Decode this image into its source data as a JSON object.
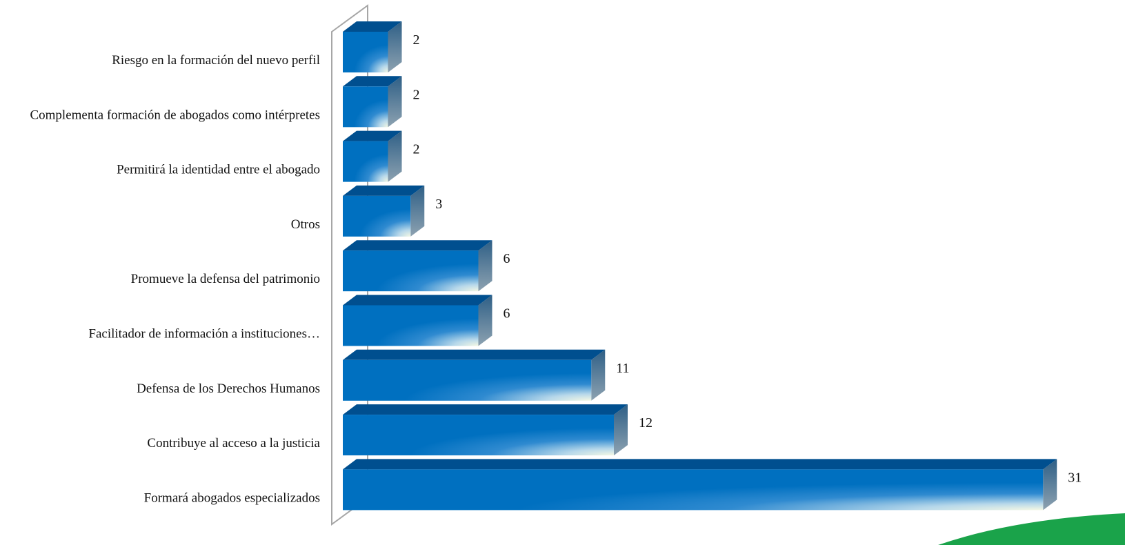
{
  "chart_data": {
    "type": "bar",
    "orientation": "horizontal",
    "style": "3d",
    "categories": [
      "Riesgo en la formación del nuevo perfil",
      "Complementa formación de abogados como intérpretes",
      "Permitirá la identidad entre el abogado",
      "Otros",
      "Promueve la defensa del patrimonio",
      "Facilitador de información a instituciones…",
      "Defensa de los Derechos Humanos",
      "Contribuye al acceso a la justicia",
      "Formará abogados especializados"
    ],
    "values": [
      2,
      2,
      2,
      3,
      6,
      6,
      11,
      12,
      31
    ],
    "data_labels": [
      "2",
      "2",
      "2",
      "3",
      "6",
      "6",
      "11",
      "12",
      "31"
    ],
    "xlim": [
      0,
      31
    ],
    "grid": false,
    "legend": "none"
  },
  "colors": {
    "bar_front": "#0070c0",
    "bar_top": "#004f8f",
    "bar_side": "#5f7c93",
    "highlight": "#f4f8e4",
    "axis": "#a6a6a6",
    "accent_swoosh": "#1aa34a"
  }
}
